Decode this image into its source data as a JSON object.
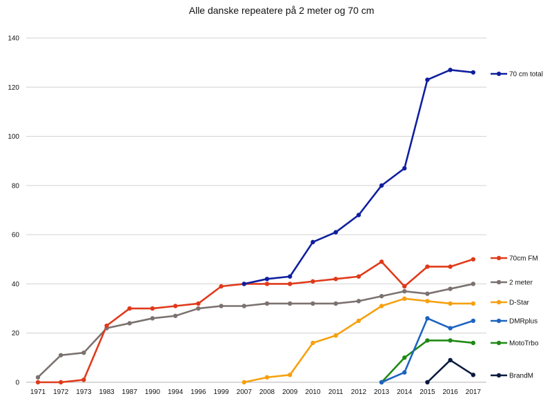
{
  "chart_data": {
    "type": "line",
    "title": "Alle danske repeatere på 2 meter og 70 cm",
    "xlabel": "",
    "ylabel": "",
    "categories": [
      "1971",
      "1972",
      "1973",
      "1983",
      "1987",
      "1990",
      "1994",
      "1996",
      "1999",
      "2007",
      "2008",
      "2009",
      "2010",
      "2011",
      "2012",
      "2013",
      "2014",
      "2015",
      "2016",
      "2017"
    ],
    "ylim": [
      0,
      140
    ],
    "yticks": [
      0,
      20,
      40,
      60,
      80,
      100,
      120,
      140
    ],
    "grid": true,
    "legend_position": "right",
    "series": [
      {
        "name": "70 cm total",
        "color": "#0f1f9e",
        "values": [
          null,
          null,
          null,
          null,
          null,
          null,
          null,
          null,
          null,
          40,
          42,
          43,
          57,
          61,
          68,
          80,
          87,
          123,
          127,
          126
        ]
      },
      {
        "name": "70cm FM",
        "color": "#e03a1a",
        "values": [
          0,
          0,
          1,
          23,
          30,
          30,
          31,
          32,
          39,
          40,
          40,
          40,
          41,
          42,
          43,
          49,
          39,
          47,
          47,
          50
        ]
      },
      {
        "name": "2 meter",
        "color": "#7b7270",
        "values": [
          2,
          11,
          12,
          22,
          24,
          26,
          27,
          30,
          31,
          31,
          32,
          32,
          32,
          32,
          33,
          35,
          37,
          36,
          38,
          40
        ]
      },
      {
        "name": "D-Star",
        "color": "#f7a00f",
        "values": [
          null,
          null,
          null,
          null,
          null,
          null,
          null,
          null,
          null,
          0,
          2,
          3,
          16,
          19,
          25,
          31,
          34,
          33,
          32,
          32
        ]
      },
      {
        "name": "DMRplus",
        "color": "#1c64c0",
        "values": [
          null,
          null,
          null,
          null,
          null,
          null,
          null,
          null,
          null,
          null,
          null,
          null,
          null,
          null,
          null,
          0,
          4,
          26,
          22,
          25
        ]
      },
      {
        "name": "MotoTrbo",
        "color": "#1f8a14",
        "values": [
          null,
          null,
          null,
          null,
          null,
          null,
          null,
          null,
          null,
          null,
          null,
          null,
          null,
          null,
          null,
          0,
          10,
          17,
          17,
          16
        ]
      },
      {
        "name": "BrandM",
        "color": "#0a1a40",
        "values": [
          null,
          null,
          null,
          null,
          null,
          null,
          null,
          null,
          null,
          null,
          null,
          null,
          null,
          null,
          null,
          null,
          null,
          0,
          9,
          3
        ]
      }
    ]
  }
}
